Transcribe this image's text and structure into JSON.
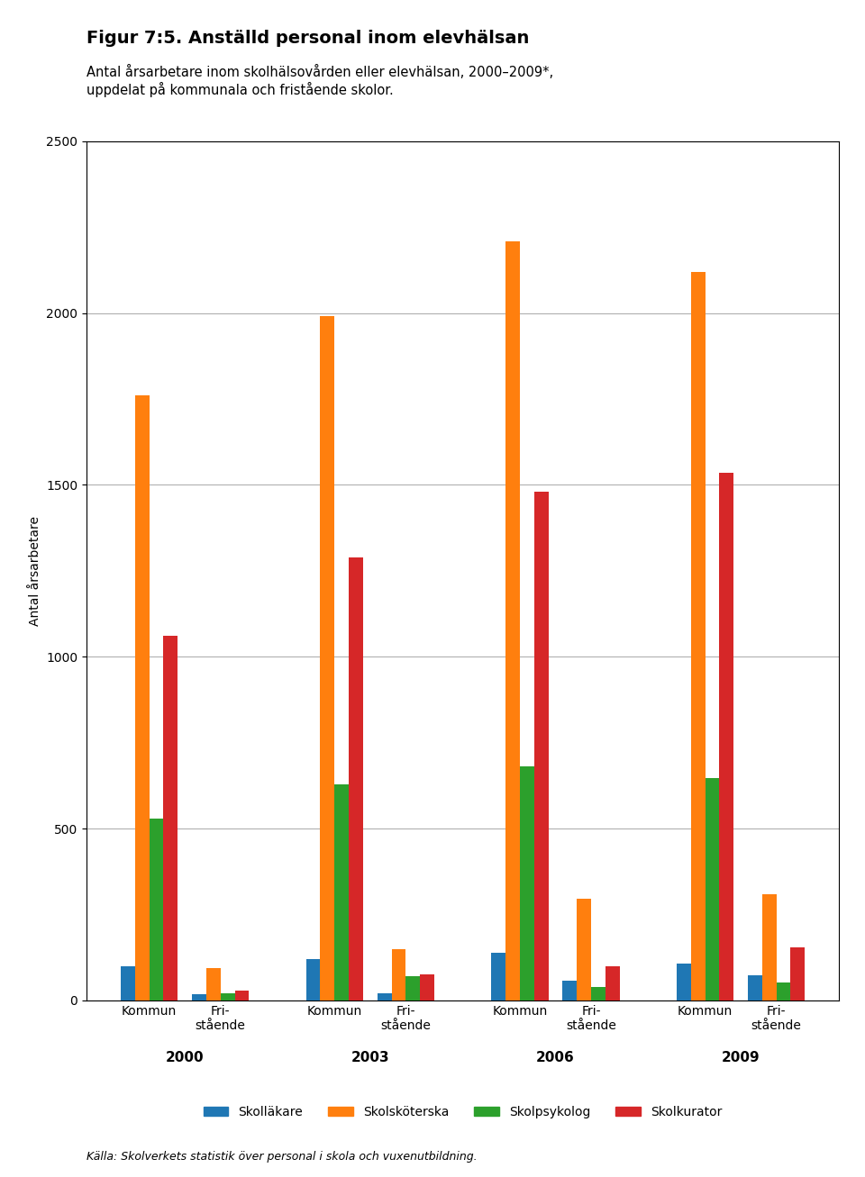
{
  "chart_data": {
    "type": "bar",
    "title": "Figur 7:5. Anställd personal inom elevhälsan",
    "subtitle": "Antal årsarbetare inom skolhälsovården eller elevhälsan, 2000–2009*,\nuppdelat på kommunala och fristående skolor.",
    "ylabel": "Antal årsarbetare",
    "source": "Källa: Skolverkets statistik över personal i skola och vuxenutbildning.",
    "categories": [
      "Kommun",
      "Fri-\nstående",
      "Kommun",
      "Fri-\nstående",
      "Kommun",
      "Fri-\nstående",
      "Kommun",
      "Fri-\nstående"
    ],
    "groups": [
      "2000",
      "2003",
      "2006",
      "2009"
    ],
    "series": [
      {
        "name": "Skolläkare",
        "values": [
          100,
          18,
          120,
          22,
          140,
          58,
          108,
          72
        ]
      },
      {
        "name": "Skolsköterska",
        "values": [
          1760,
          95,
          1990,
          150,
          2210,
          295,
          2120,
          310
        ]
      },
      {
        "name": "Skolpsykolog",
        "values": [
          530,
          20,
          630,
          70,
          680,
          40,
          648,
          52
        ]
      },
      {
        "name": "Skolkurator",
        "values": [
          1060,
          28,
          1290,
          75,
          1480,
          100,
          1535,
          155
        ]
      }
    ],
    "ylim": [
      0,
      2500
    ],
    "yticks": [
      0,
      500,
      1000,
      1500,
      2000,
      2500
    ],
    "grid": true,
    "legend": "lower center"
  }
}
